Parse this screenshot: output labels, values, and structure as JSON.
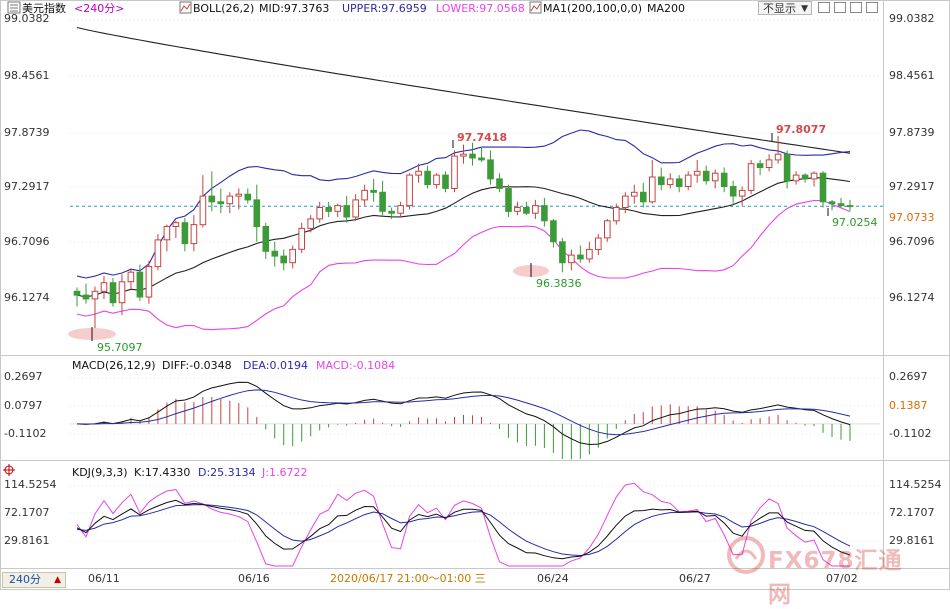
{
  "header": {
    "symbol": "美元指数",
    "period": "<240分>",
    "boll_label": "BOLL(26,2)",
    "boll_mid": "MID:97.3763",
    "boll_upper": "UPPER:97.6959",
    "boll_lower": "LOWER:97.0568",
    "ma_label": "MA1(200,100,0,0)",
    "ma_name": "MA200",
    "hide_label": "不显示"
  },
  "macd_header": {
    "label": "MACD(26,12,9)",
    "diff": "DIFF:-0.0348",
    "dea": "DEA:0.0194",
    "macd": "MACD:-0.1084"
  },
  "kdj_header": {
    "label": "KDJ(9,3,3)",
    "k": "K:17.4330",
    "d": "D:25.3134",
    "j": "J:1.6722"
  },
  "price_axis": {
    "ticks": [
      "99.0382",
      "98.4561",
      "97.8739",
      "97.2917",
      "96.7096",
      "96.1274"
    ],
    "current": "97.0733"
  },
  "macd_axis": {
    "ticks": [
      "0.2697",
      "0.0797",
      "-0.1102"
    ],
    "current": "0.1387"
  },
  "kdj_axis": {
    "ticks": [
      "114.5254",
      "72.1707",
      "29.8161"
    ]
  },
  "x_axis": {
    "labels": [
      "06/11",
      "06/16",
      "06/24",
      "06/27",
      "07/02"
    ],
    "cursor_time": "2020/06/17 21:00～01:00 三"
  },
  "annotations": {
    "low1": "95.7097",
    "high1": "97.7418",
    "low2": "96.3836",
    "high2": "97.8077",
    "last_low": "97.0254"
  },
  "period_selector": {
    "label": "240分"
  },
  "watermark": {
    "text": "FX678汇通网"
  },
  "colors": {
    "up": "#c8423f",
    "down": "#3d9a38",
    "boll_band": "#2a2aa8",
    "boll_lower": "#e844e8",
    "ma200": "#222222",
    "boll_mid": "#222222",
    "macd_diff": "#111111",
    "macd_dea": "#2a2aa8",
    "kdj_k": "#111111",
    "kdj_d": "#2a2aa8",
    "kdj_j": "#e844e8",
    "current_price": "#1e9ac8"
  },
  "chart_data": {
    "type": "candlestick",
    "title": "美元指数 240分",
    "indicators": [
      "BOLL(26,2)",
      "MA200",
      "MACD(26,12,9)",
      "KDJ(9,3,3)"
    ],
    "ylim": [
      95.7,
      99.05
    ],
    "x_labels": [
      "06/11",
      "06/16",
      "06/24",
      "06/27",
      "07/02"
    ],
    "last_close": 97.0733,
    "candles": [
      [
        96.18,
        96.22,
        96.02,
        96.14
      ],
      [
        96.14,
        96.26,
        96.05,
        96.1
      ],
      [
        96.1,
        96.23,
        95.71,
        96.18
      ],
      [
        96.18,
        96.34,
        96.1,
        96.27
      ],
      [
        96.27,
        96.32,
        96.02,
        96.06
      ],
      [
        96.06,
        96.36,
        95.93,
        96.28
      ],
      [
        96.28,
        96.42,
        96.2,
        96.38
      ],
      [
        96.38,
        96.46,
        96.08,
        96.12
      ],
      [
        96.12,
        96.5,
        96.05,
        96.44
      ],
      [
        96.44,
        96.78,
        96.4,
        96.72
      ],
      [
        96.72,
        96.88,
        96.6,
        96.86
      ],
      [
        96.86,
        96.92,
        96.74,
        96.9
      ],
      [
        96.9,
        96.95,
        96.6,
        96.68
      ],
      [
        96.68,
        96.98,
        96.6,
        96.88
      ],
      [
        96.88,
        97.4,
        96.85,
        97.18
      ],
      [
        97.18,
        97.44,
        97.02,
        97.12
      ],
      [
        97.12,
        97.26,
        97.0,
        97.1
      ],
      [
        97.1,
        97.22,
        97.0,
        97.18
      ],
      [
        97.18,
        97.26,
        97.04,
        97.2
      ],
      [
        97.2,
        97.26,
        97.1,
        97.14
      ],
      [
        97.14,
        97.3,
        96.7,
        96.86
      ],
      [
        96.86,
        96.9,
        96.52,
        96.6
      ],
      [
        96.6,
        96.7,
        96.44,
        96.55
      ],
      [
        96.55,
        96.62,
        96.4,
        96.48
      ],
      [
        96.48,
        96.66,
        96.42,
        96.62
      ],
      [
        96.62,
        96.9,
        96.58,
        96.84
      ],
      [
        96.84,
        96.98,
        96.8,
        96.94
      ],
      [
        96.94,
        97.12,
        96.9,
        97.06
      ],
      [
        97.06,
        97.12,
        96.96,
        97.02
      ],
      [
        97.02,
        97.1,
        96.96,
        97.08
      ],
      [
        97.08,
        97.18,
        96.9,
        96.96
      ],
      [
        96.96,
        97.2,
        96.92,
        97.14
      ],
      [
        97.14,
        97.3,
        97.08,
        97.24
      ],
      [
        97.24,
        97.36,
        97.12,
        97.22
      ],
      [
        97.22,
        97.34,
        96.98,
        97.02
      ],
      [
        97.02,
        97.06,
        96.94,
        97.0
      ],
      [
        97.0,
        97.12,
        96.96,
        97.08
      ],
      [
        97.08,
        97.42,
        97.04,
        97.4
      ],
      [
        97.4,
        97.52,
        97.32,
        97.44
      ],
      [
        97.44,
        97.5,
        97.26,
        97.3
      ],
      [
        97.3,
        97.42,
        97.26,
        97.4
      ],
      [
        97.4,
        97.44,
        97.22,
        97.26
      ],
      [
        97.26,
        97.66,
        97.22,
        97.6
      ],
      [
        97.6,
        97.72,
        97.52,
        97.62
      ],
      [
        97.62,
        97.74,
        97.5,
        97.58
      ],
      [
        97.58,
        97.7,
        97.54,
        97.56
      ],
      [
        97.56,
        97.66,
        97.3,
        97.36
      ],
      [
        97.36,
        97.42,
        97.22,
        97.26
      ],
      [
        97.26,
        97.3,
        96.96,
        97.02
      ],
      [
        97.02,
        97.12,
        96.98,
        97.06
      ],
      [
        97.06,
        97.12,
        96.98,
        97.0
      ],
      [
        97.0,
        97.14,
        96.94,
        97.08
      ],
      [
        97.08,
        97.16,
        96.86,
        96.92
      ],
      [
        96.92,
        96.94,
        96.64,
        96.7
      ],
      [
        96.7,
        96.74,
        96.38,
        96.48
      ],
      [
        96.48,
        96.62,
        96.4,
        96.56
      ],
      [
        96.56,
        96.66,
        96.48,
        96.52
      ],
      [
        96.52,
        96.7,
        96.48,
        96.62
      ],
      [
        96.62,
        96.78,
        96.56,
        96.74
      ],
      [
        96.74,
        96.94,
        96.7,
        96.92
      ],
      [
        96.92,
        97.1,
        96.88,
        97.06
      ],
      [
        97.06,
        97.22,
        97.0,
        97.18
      ],
      [
        97.18,
        97.3,
        97.1,
        97.22
      ],
      [
        97.22,
        97.32,
        97.06,
        97.12
      ],
      [
        97.12,
        97.56,
        97.1,
        97.38
      ],
      [
        97.38,
        97.48,
        97.24,
        97.3
      ],
      [
        97.3,
        97.42,
        97.26,
        97.36
      ],
      [
        97.36,
        97.4,
        97.22,
        97.28
      ],
      [
        97.28,
        97.44,
        97.24,
        97.4
      ],
      [
        97.4,
        97.56,
        97.32,
        97.44
      ],
      [
        97.44,
        97.5,
        97.3,
        97.34
      ],
      [
        97.34,
        97.46,
        97.26,
        97.42
      ],
      [
        97.42,
        97.48,
        97.22,
        97.28
      ],
      [
        97.28,
        97.34,
        97.1,
        97.18
      ],
      [
        97.18,
        97.28,
        97.08,
        97.24
      ],
      [
        97.24,
        97.56,
        97.2,
        97.52
      ],
      [
        97.52,
        97.56,
        97.4,
        97.48
      ],
      [
        97.48,
        97.62,
        97.44,
        97.56
      ],
      [
        97.56,
        97.81,
        97.52,
        97.62
      ],
      [
        97.62,
        97.66,
        97.26,
        97.34
      ],
      [
        97.34,
        97.44,
        97.3,
        97.4
      ],
      [
        97.4,
        97.42,
        97.32,
        97.36
      ],
      [
        97.36,
        97.44,
        97.28,
        97.42
      ],
      [
        97.42,
        97.44,
        97.06,
        97.12
      ],
      [
        97.12,
        97.14,
        97.03,
        97.1
      ],
      [
        97.1,
        97.16,
        97.06,
        97.08
      ],
      [
        97.08,
        97.14,
        97.02,
        97.07
      ]
    ]
  }
}
